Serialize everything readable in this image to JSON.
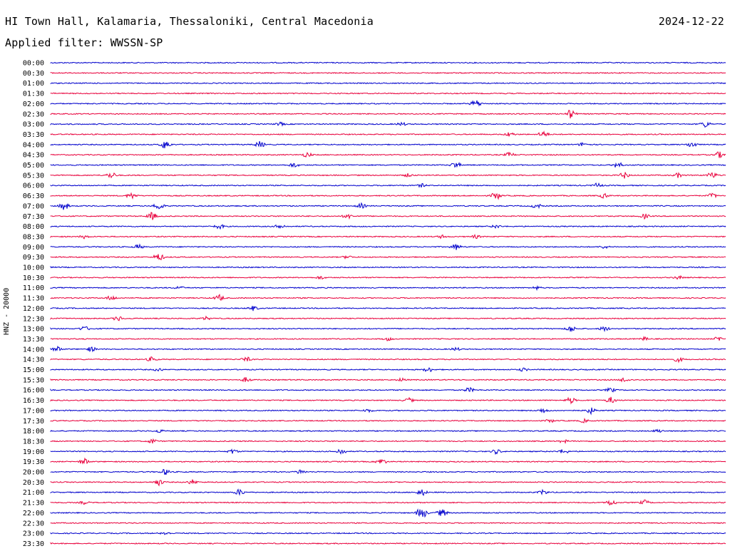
{
  "header": {
    "title": "HI Town Hall, Kalamaria, Thessaloniki, Central Macedonia",
    "date": "2024-12-22",
    "filter": "Applied filter: WWSSN-SP"
  },
  "chart_data": {
    "type": "line",
    "ylabel": "HNZ - 20000",
    "colors": {
      "odd": "#0000cc",
      "even": "#e8003c"
    },
    "rows": [
      {
        "label": "00:00",
        "color": "#0000cc",
        "bursts": []
      },
      {
        "label": "00:30",
        "color": "#e8003c",
        "bursts": []
      },
      {
        "label": "01:00",
        "color": "#0000cc",
        "bursts": []
      },
      {
        "label": "01:30",
        "color": "#e8003c",
        "bursts": []
      },
      {
        "label": "02:00",
        "color": "#0000cc",
        "bursts": [
          [
            0.63,
            6
          ],
          [
            0.63,
            4
          ]
        ]
      },
      {
        "label": "02:30",
        "color": "#e8003c",
        "bursts": [
          [
            0.77,
            7
          ]
        ]
      },
      {
        "label": "03:00",
        "color": "#0000cc",
        "bursts": [
          [
            0.34,
            3
          ],
          [
            0.52,
            3
          ],
          [
            0.97,
            5
          ]
        ]
      },
      {
        "label": "03:30",
        "color": "#e8003c",
        "bursts": [
          [
            0.68,
            4
          ],
          [
            0.73,
            5
          ]
        ]
      },
      {
        "label": "04:00",
        "color": "#0000cc",
        "bursts": [
          [
            0.17,
            7
          ],
          [
            0.31,
            5
          ],
          [
            0.79,
            4
          ],
          [
            0.95,
            5
          ]
        ]
      },
      {
        "label": "04:30",
        "color": "#e8003c",
        "bursts": [
          [
            0.38,
            4
          ],
          [
            0.68,
            4
          ],
          [
            0.99,
            5
          ]
        ]
      },
      {
        "label": "05:00",
        "color": "#0000cc",
        "bursts": [
          [
            0.36,
            4
          ],
          [
            0.6,
            5
          ],
          [
            0.84,
            5
          ]
        ]
      },
      {
        "label": "05:30",
        "color": "#e8003c",
        "bursts": [
          [
            0.09,
            5
          ],
          [
            0.53,
            3
          ],
          [
            0.85,
            5
          ],
          [
            0.93,
            4
          ],
          [
            0.98,
            5
          ]
        ]
      },
      {
        "label": "06:00",
        "color": "#0000cc",
        "bursts": [
          [
            0.55,
            3
          ],
          [
            0.81,
            4
          ]
        ]
      },
      {
        "label": "06:30",
        "color": "#e8003c",
        "bursts": [
          [
            0.12,
            5
          ],
          [
            0.66,
            6
          ],
          [
            0.82,
            4
          ],
          [
            0.98,
            4
          ]
        ]
      },
      {
        "label": "07:00",
        "color": "#0000cc",
        "bursts": [
          [
            0.02,
            6
          ],
          [
            0.16,
            6
          ],
          [
            0.46,
            4
          ],
          [
            0.72,
            4
          ]
        ]
      },
      {
        "label": "07:30",
        "color": "#e8003c",
        "bursts": [
          [
            0.15,
            6
          ],
          [
            0.44,
            4
          ],
          [
            0.88,
            4
          ]
        ]
      },
      {
        "label": "08:00",
        "color": "#0000cc",
        "bursts": [
          [
            0.25,
            4
          ],
          [
            0.34,
            4
          ],
          [
            0.66,
            3
          ]
        ]
      },
      {
        "label": "08:30",
        "color": "#e8003c",
        "bursts": [
          [
            0.05,
            3
          ],
          [
            0.58,
            3
          ],
          [
            0.63,
            3
          ]
        ]
      },
      {
        "label": "09:00",
        "color": "#0000cc",
        "bursts": [
          [
            0.13,
            4
          ],
          [
            0.6,
            5
          ],
          [
            0.82,
            3
          ]
        ]
      },
      {
        "label": "09:30",
        "color": "#e8003c",
        "bursts": [
          [
            0.16,
            6
          ],
          [
            0.44,
            3
          ]
        ]
      },
      {
        "label": "10:00",
        "color": "#0000cc",
        "bursts": []
      },
      {
        "label": "10:30",
        "color": "#e8003c",
        "bursts": [
          [
            0.4,
            3
          ],
          [
            0.93,
            3
          ]
        ]
      },
      {
        "label": "11:00",
        "color": "#0000cc",
        "bursts": [
          [
            0.19,
            3
          ],
          [
            0.72,
            3
          ]
        ]
      },
      {
        "label": "11:30",
        "color": "#e8003c",
        "bursts": [
          [
            0.09,
            4
          ],
          [
            0.25,
            5
          ]
        ]
      },
      {
        "label": "12:00",
        "color": "#0000cc",
        "bursts": [
          [
            0.3,
            4
          ]
        ]
      },
      {
        "label": "12:30",
        "color": "#e8003c",
        "bursts": [
          [
            0.1,
            4
          ],
          [
            0.23,
            3
          ]
        ]
      },
      {
        "label": "13:00",
        "color": "#0000cc",
        "bursts": [
          [
            0.05,
            4
          ],
          [
            0.77,
            5
          ],
          [
            0.82,
            4
          ]
        ]
      },
      {
        "label": "13:30",
        "color": "#e8003c",
        "bursts": [
          [
            0.5,
            3
          ],
          [
            0.88,
            3
          ],
          [
            0.99,
            4
          ]
        ]
      },
      {
        "label": "14:00",
        "color": "#0000cc",
        "bursts": [
          [
            0.01,
            4
          ],
          [
            0.06,
            4
          ],
          [
            0.6,
            3
          ]
        ]
      },
      {
        "label": "14:30",
        "color": "#e8003c",
        "bursts": [
          [
            0.15,
            4
          ],
          [
            0.29,
            4
          ],
          [
            0.93,
            4
          ]
        ]
      },
      {
        "label": "15:00",
        "color": "#0000cc",
        "bursts": [
          [
            0.16,
            3
          ],
          [
            0.56,
            4
          ],
          [
            0.7,
            3
          ]
        ]
      },
      {
        "label": "15:30",
        "color": "#e8003c",
        "bursts": [
          [
            0.29,
            4
          ],
          [
            0.52,
            3
          ],
          [
            0.85,
            4
          ]
        ]
      },
      {
        "label": "16:00",
        "color": "#0000cc",
        "bursts": [
          [
            0.62,
            4
          ],
          [
            0.83,
            4
          ]
        ]
      },
      {
        "label": "16:30",
        "color": "#e8003c",
        "bursts": [
          [
            0.53,
            4
          ],
          [
            0.77,
            5
          ],
          [
            0.83,
            5
          ]
        ]
      },
      {
        "label": "17:00",
        "color": "#0000cc",
        "bursts": [
          [
            0.47,
            3
          ],
          [
            0.73,
            4
          ],
          [
            0.8,
            5
          ]
        ]
      },
      {
        "label": "17:30",
        "color": "#e8003c",
        "bursts": [
          [
            0.74,
            3
          ],
          [
            0.79,
            3
          ]
        ]
      },
      {
        "label": "18:00",
        "color": "#0000cc",
        "bursts": [
          [
            0.16,
            3
          ],
          [
            0.9,
            3
          ]
        ]
      },
      {
        "label": "18:30",
        "color": "#e8003c",
        "bursts": [
          [
            0.15,
            4
          ],
          [
            0.76,
            3
          ]
        ]
      },
      {
        "label": "19:00",
        "color": "#0000cc",
        "bursts": [
          [
            0.27,
            4
          ],
          [
            0.43,
            5
          ],
          [
            0.66,
            4
          ],
          [
            0.76,
            4
          ]
        ]
      },
      {
        "label": "19:30",
        "color": "#e8003c",
        "bursts": [
          [
            0.05,
            5
          ],
          [
            0.49,
            5
          ]
        ]
      },
      {
        "label": "20:00",
        "color": "#0000cc",
        "bursts": [
          [
            0.17,
            5
          ],
          [
            0.37,
            4
          ]
        ]
      },
      {
        "label": "20:30",
        "color": "#e8003c",
        "bursts": [
          [
            0.16,
            5
          ],
          [
            0.21,
            4
          ]
        ]
      },
      {
        "label": "21:00",
        "color": "#0000cc",
        "bursts": [
          [
            0.28,
            5
          ],
          [
            0.55,
            5
          ],
          [
            0.73,
            4
          ]
        ]
      },
      {
        "label": "21:30",
        "color": "#e8003c",
        "bursts": [
          [
            0.05,
            3
          ],
          [
            0.83,
            5
          ],
          [
            0.88,
            4
          ]
        ]
      },
      {
        "label": "22:00",
        "color": "#0000cc",
        "bursts": [
          [
            0.55,
            9
          ],
          [
            0.58,
            6
          ]
        ]
      },
      {
        "label": "22:30",
        "color": "#e8003c",
        "bursts": []
      },
      {
        "label": "23:00",
        "color": "#0000cc",
        "bursts": [
          [
            0.17,
            3
          ]
        ]
      },
      {
        "label": "23:30",
        "color": "#e8003c",
        "bursts": []
      }
    ]
  }
}
